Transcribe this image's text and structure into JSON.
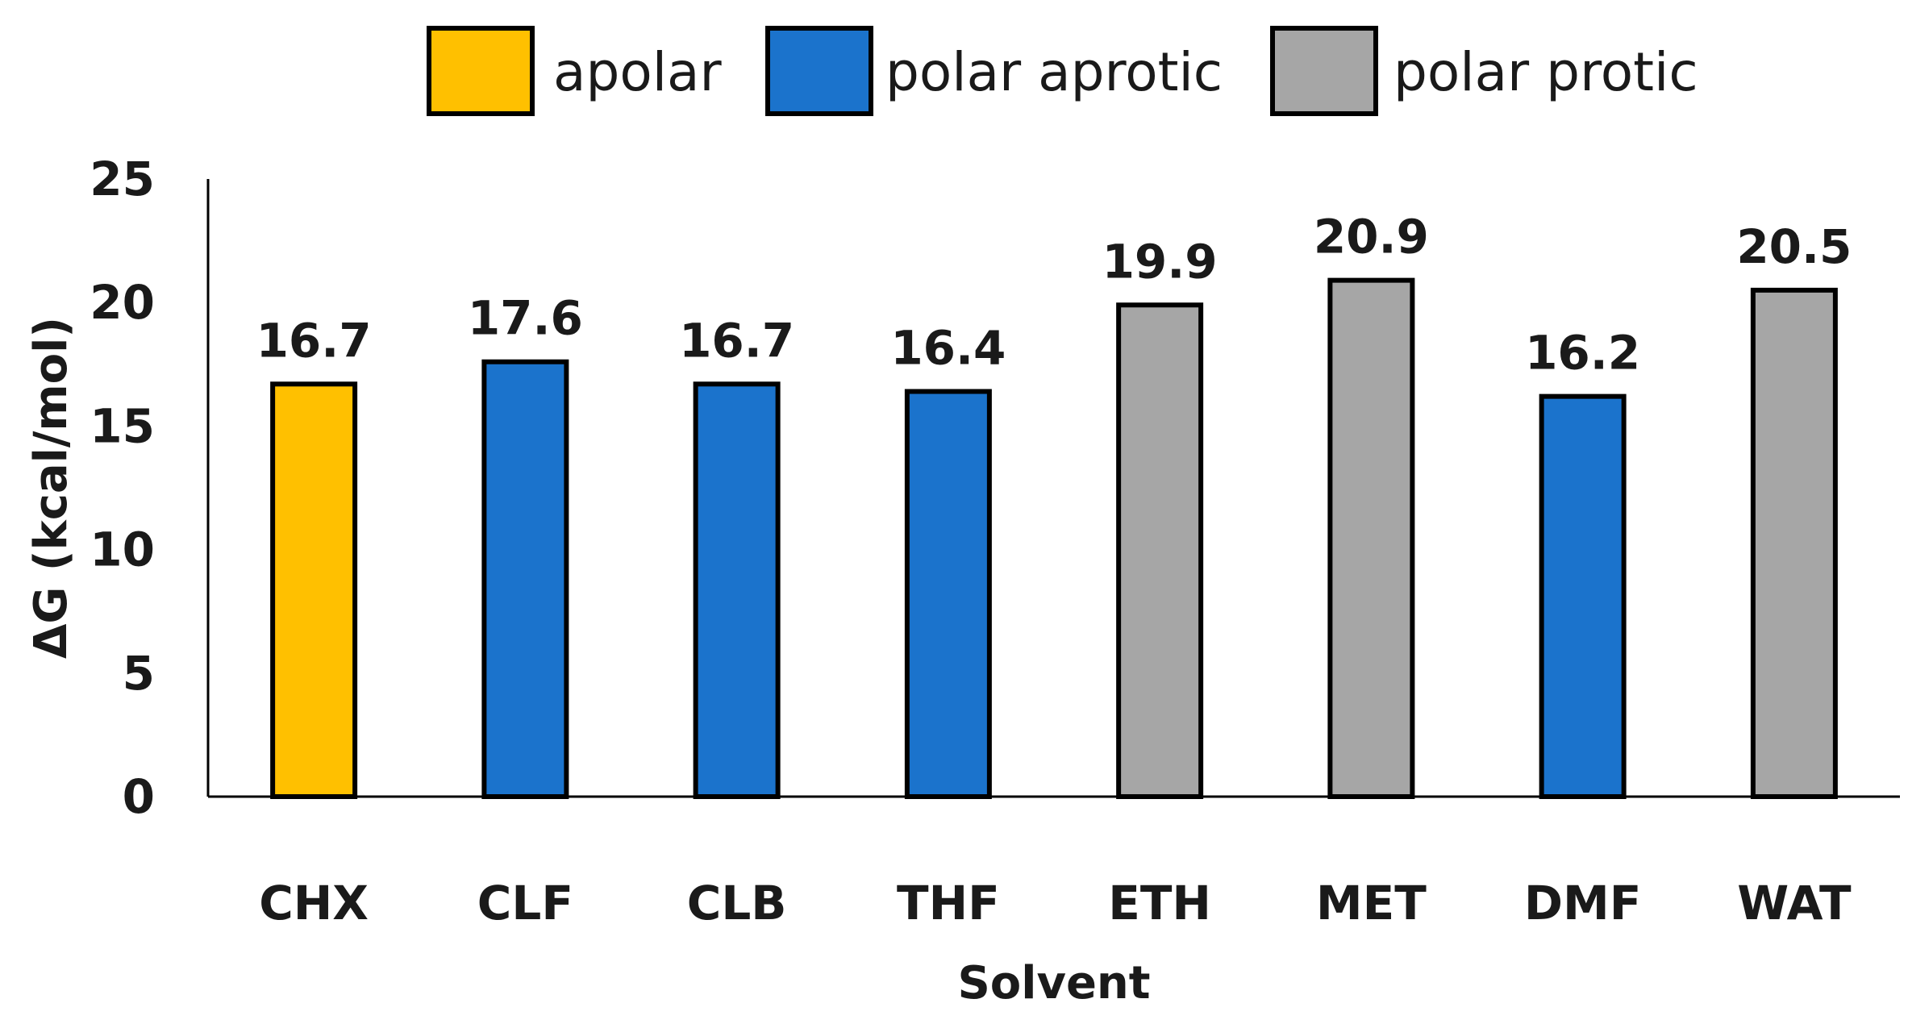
{
  "chart_data": {
    "type": "bar",
    "categories": [
      "CHX",
      "CLF",
      "CLB",
      "THF",
      "ETH",
      "MET",
      "DMF",
      "WAT"
    ],
    "values": [
      16.7,
      17.6,
      16.7,
      16.4,
      19.9,
      20.9,
      16.2,
      20.5
    ],
    "value_labels": [
      "16.7",
      "17.6",
      "16.7",
      "16.4",
      "19.9",
      "20.9",
      "16.2",
      "20.5"
    ],
    "groups": [
      "apolar",
      "polar aprotic",
      "polar aprotic",
      "polar aprotic",
      "polar protic",
      "polar protic",
      "polar aprotic",
      "polar protic"
    ],
    "legend": [
      {
        "name": "apolar",
        "color": "#FFC000"
      },
      {
        "name": "polar aprotic",
        "color": "#1B73CC"
      },
      {
        "name": "polar protic",
        "color": "#A6A6A6"
      }
    ],
    "legend_position": "top",
    "xlabel": "Solvent",
    "ylabel": "ΔG (kcal/mol)",
    "ylim": [
      0,
      25
    ],
    "yticks": [
      "0",
      "5",
      "10",
      "15",
      "20",
      "25"
    ],
    "ytick_values": [
      0,
      5,
      10,
      15,
      20,
      25
    ],
    "grid": false,
    "bar_outline_color": "#000000"
  }
}
